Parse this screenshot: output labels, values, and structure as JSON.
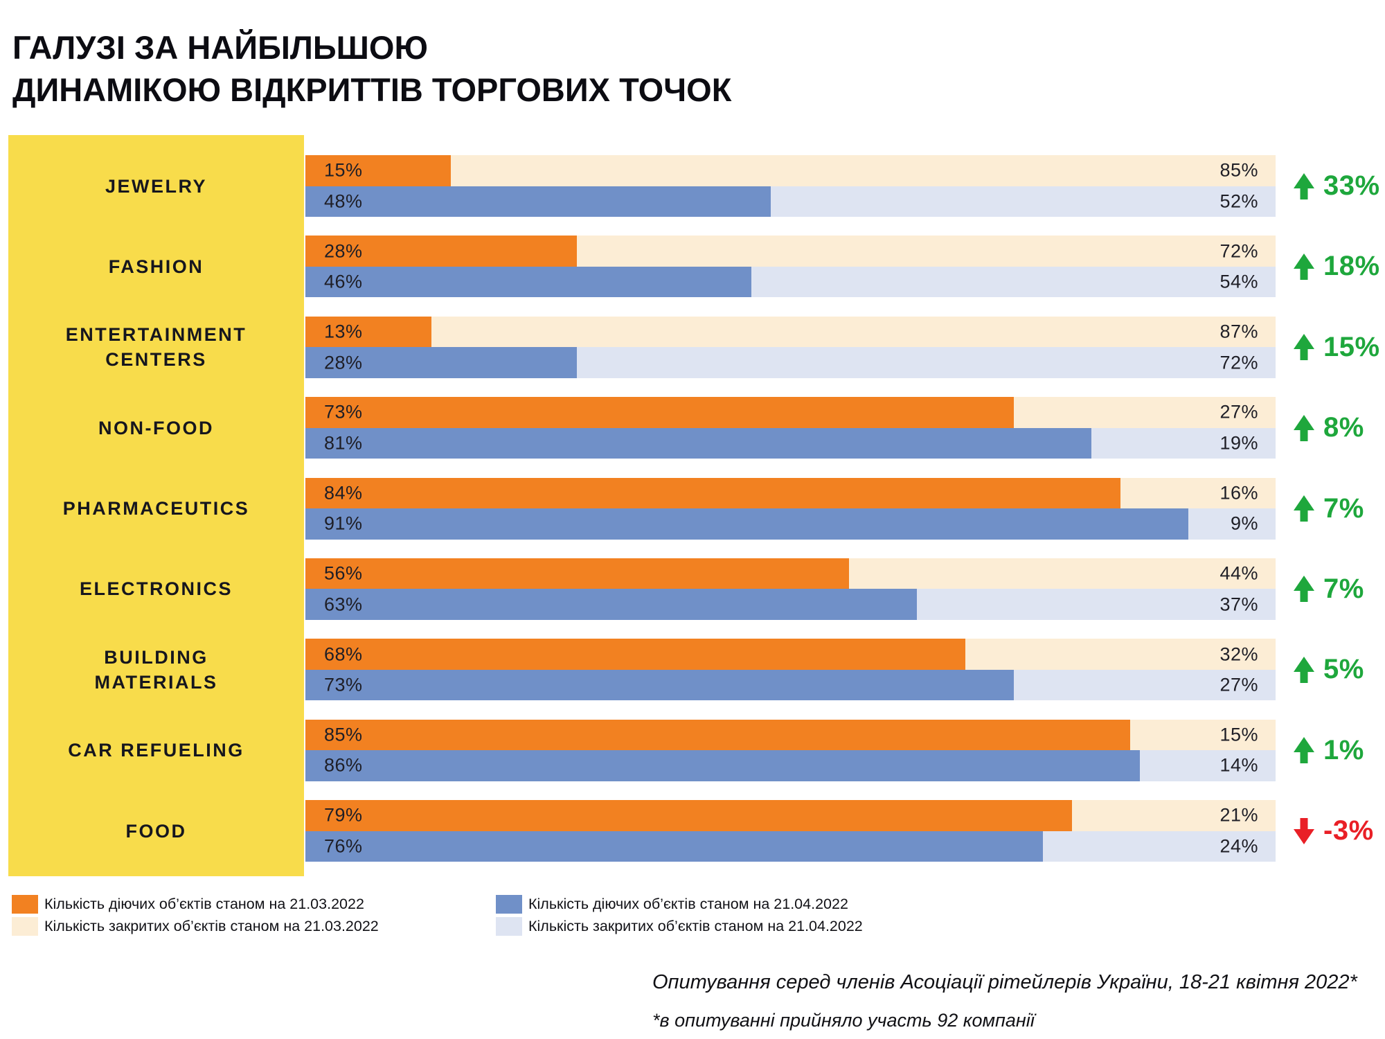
{
  "title": "ГАЛУЗІ ЗА НАЙБІЛЬШОЮ\nДИНАМІКОЮ ВІДКРИТТІВ ТОРГОВИХ ТОЧОК",
  "legend": {
    "items": [
      {
        "label": "Кількість діючих об’єктів станом на 21.03.2022",
        "color_key": "open_mar"
      },
      {
        "label": "Кількість закритих об’єктів станом на 21.03.2022",
        "color_key": "closed_mar"
      },
      {
        "label": "Кількість діючих об’єктів станом на 21.04.2022",
        "color_key": "open_apr"
      },
      {
        "label": "Кількість закритих об’єктів станом на 21.04.2022",
        "color_key": "closed_apr"
      }
    ]
  },
  "footer": {
    "line1": "Опитування серед членів Асоціації рітейлерів України, 18-21 квітня 2022*",
    "line2": "*в опитуванні прийняло участь 92 компанії"
  },
  "chart_data": {
    "type": "bar",
    "orientation": "horizontal",
    "stacked": true,
    "unit": "%",
    "xlim": [
      0,
      100
    ],
    "grid": false,
    "legend_position": "bottom",
    "title": "ГАЛУЗІ ЗА НАЙБІЛЬШОЮ ДИНАМІКОЮ ВІДКРИТТІВ ТОРГОВИХ ТОЧОК",
    "categories": [
      "JEWELRY",
      "FASHION",
      "ENTERTAINMENT CENTERS",
      "NON-FOOD",
      "PHARMACEUTICS",
      "ELECTRONICS",
      "BUILDING MATERIALS",
      "CAR REFUELING",
      "FOOD"
    ],
    "series": [
      {
        "name": "Кількість діючих об’єктів станом на 21.03.2022",
        "values": [
          15,
          28,
          13,
          73,
          84,
          56,
          68,
          85,
          79
        ]
      },
      {
        "name": "Кількість закритих об’єктів станом на 21.03.2022",
        "values": [
          85,
          72,
          87,
          27,
          16,
          44,
          32,
          15,
          21
        ]
      },
      {
        "name": "Кількість діючих об’єктів станом на 21.04.2022",
        "values": [
          48,
          46,
          28,
          81,
          91,
          63,
          73,
          86,
          76
        ]
      },
      {
        "name": "Кількість закритих об’єктів станом на 21.04.2022",
        "values": [
          52,
          54,
          72,
          19,
          9,
          37,
          27,
          14,
          24
        ]
      }
    ],
    "changes": [
      33,
      18,
      15,
      8,
      7,
      7,
      5,
      1,
      -3
    ],
    "rows": [
      {
        "label": "JEWELRY",
        "open_2103": 15,
        "closed_2103": 85,
        "open_2104": 48,
        "closed_2104": 52,
        "change": "33%",
        "direction": "up"
      },
      {
        "label": "FASHION",
        "open_2103": 28,
        "closed_2103": 72,
        "open_2104": 46,
        "closed_2104": 54,
        "change": "18%",
        "direction": "up"
      },
      {
        "label": "ENTERTAINMENT\nCENTERS",
        "open_2103": 13,
        "closed_2103": 87,
        "open_2104": 28,
        "closed_2104": 72,
        "change": "15%",
        "direction": "up"
      },
      {
        "label": "NON-FOOD",
        "open_2103": 73,
        "closed_2103": 27,
        "open_2104": 81,
        "closed_2104": 19,
        "change": "8%",
        "direction": "up"
      },
      {
        "label": "PHARMACEUTICS",
        "open_2103": 84,
        "closed_2103": 16,
        "open_2104": 91,
        "closed_2104": 9,
        "change": "7%",
        "direction": "up"
      },
      {
        "label": "ELECTRONICS",
        "open_2103": 56,
        "closed_2103": 44,
        "open_2104": 63,
        "closed_2104": 37,
        "change": "7%",
        "direction": "up"
      },
      {
        "label": "BUILDING\nMATERIALS",
        "open_2103": 68,
        "closed_2103": 32,
        "open_2104": 73,
        "closed_2104": 27,
        "change": "5%",
        "direction": "up"
      },
      {
        "label": "CAR REFUELING",
        "open_2103": 85,
        "closed_2103": 15,
        "open_2104": 86,
        "closed_2104": 14,
        "change": "1%",
        "direction": "up"
      },
      {
        "label": "FOOD",
        "open_2103": 79,
        "closed_2103": 21,
        "open_2104": 76,
        "closed_2104": 24,
        "change": "-3%",
        "direction": "down"
      }
    ],
    "colors": {
      "open_mar": "#F28121",
      "closed_mar": "#FCEDD5",
      "open_apr": "#7090C8",
      "closed_apr": "#DEE4F2",
      "up": "#1EA73C",
      "down": "#E91F26",
      "yellow": "#F8DC4B"
    }
  }
}
